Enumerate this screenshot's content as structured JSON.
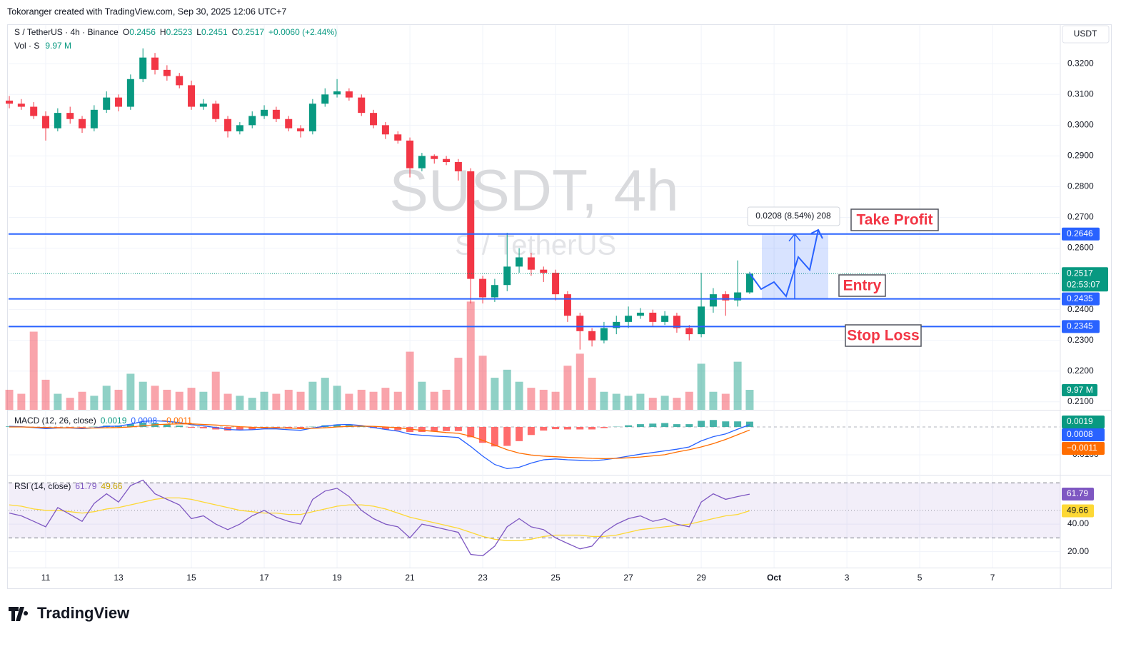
{
  "header": {
    "credit": "Tokoranger created with TradingView.com, Sep 30, 2025 12:06 UTC+7",
    "symbol": "S / TetherUS · 4h · Binance",
    "ohlc_letters": [
      "O",
      "H",
      "L",
      "C"
    ],
    "change": "+0.0060 (+2.44%)",
    "vol_label": "Vol · S",
    "vol_value": "9.97 M",
    "currency": "USDT",
    "countdown": "02:53:07",
    "logo": "TradingView"
  },
  "chart_data": {
    "type": "candlestick",
    "watermark": "SUSDT, 4h",
    "watermark_sub": "S / TetherUS",
    "up_color": "#089981",
    "down_color": "#f23645",
    "grid": true,
    "x": [
      10,
      10.33,
      10.67,
      11,
      11.33,
      11.67,
      12,
      12.33,
      12.67,
      13,
      13.33,
      13.67,
      14,
      14.33,
      14.67,
      15,
      15.33,
      15.67,
      16,
      16.33,
      16.67,
      17,
      17.33,
      17.67,
      18,
      18.33,
      18.67,
      19,
      19.33,
      19.67,
      20,
      20.33,
      20.67,
      21,
      21.33,
      21.67,
      22,
      22.33,
      22.67,
      23,
      23.33,
      23.67,
      24,
      24.33,
      24.67,
      25,
      25.33,
      25.67,
      26,
      26.33,
      26.67,
      27,
      27.33,
      27.67,
      28,
      28.33,
      28.67,
      29,
      29.33,
      29.67,
      30,
      30.33
    ],
    "open": [
      0.308,
      0.307,
      0.306,
      0.303,
      0.299,
      0.304,
      0.302,
      0.299,
      0.305,
      0.309,
      0.306,
      0.315,
      0.322,
      0.318,
      0.316,
      0.313,
      0.306,
      0.307,
      0.302,
      0.298,
      0.3,
      0.303,
      0.305,
      0.302,
      0.299,
      0.298,
      0.307,
      0.31,
      0.311,
      0.309,
      0.304,
      0.3,
      0.297,
      0.295,
      0.286,
      0.29,
      0.289,
      0.288,
      0.285,
      0.25,
      0.244,
      0.248,
      0.254,
      0.257,
      0.253,
      0.252,
      0.245,
      0.238,
      0.233,
      0.23,
      0.234,
      0.236,
      0.238,
      0.239,
      0.236,
      0.238,
      0.234,
      0.232,
      0.241,
      0.245,
      0.243,
      0.2456
    ],
    "high": [
      0.3095,
      0.3085,
      0.3075,
      0.3045,
      0.3055,
      0.306,
      0.303,
      0.3065,
      0.311,
      0.31,
      0.3165,
      0.325,
      0.3235,
      0.3195,
      0.317,
      0.3145,
      0.3085,
      0.308,
      0.303,
      0.301,
      0.3045,
      0.3065,
      0.306,
      0.303,
      0.3,
      0.3085,
      0.312,
      0.315,
      0.312,
      0.31,
      0.305,
      0.301,
      0.298,
      0.296,
      0.291,
      0.2905,
      0.29,
      0.289,
      0.286,
      0.251,
      0.25,
      0.265,
      0.26,
      0.2585,
      0.254,
      0.253,
      0.246,
      0.239,
      0.234,
      0.236,
      0.238,
      0.241,
      0.2405,
      0.24,
      0.2395,
      0.239,
      0.235,
      0.252,
      0.247,
      0.246,
      0.256,
      0.2523
    ],
    "low": [
      0.3055,
      0.305,
      0.302,
      0.295,
      0.298,
      0.3005,
      0.2975,
      0.298,
      0.304,
      0.3045,
      0.305,
      0.314,
      0.3165,
      0.3145,
      0.312,
      0.305,
      0.305,
      0.301,
      0.296,
      0.297,
      0.299,
      0.302,
      0.301,
      0.298,
      0.296,
      0.297,
      0.306,
      0.309,
      0.308,
      0.303,
      0.299,
      0.2955,
      0.294,
      0.283,
      0.285,
      0.2875,
      0.287,
      0.282,
      0.242,
      0.242,
      0.2425,
      0.246,
      0.252,
      0.251,
      0.249,
      0.243,
      0.236,
      0.227,
      0.228,
      0.229,
      0.232,
      0.234,
      0.237,
      0.2345,
      0.235,
      0.2325,
      0.23,
      0.231,
      0.239,
      0.238,
      0.241,
      0.2451
    ],
    "close": [
      0.307,
      0.306,
      0.303,
      0.299,
      0.304,
      0.302,
      0.299,
      0.305,
      0.309,
      0.306,
      0.315,
      0.322,
      0.318,
      0.316,
      0.313,
      0.306,
      0.307,
      0.302,
      0.298,
      0.3,
      0.303,
      0.305,
      0.302,
      0.299,
      0.298,
      0.307,
      0.31,
      0.311,
      0.309,
      0.304,
      0.3,
      0.297,
      0.295,
      0.286,
      0.29,
      0.289,
      0.288,
      0.285,
      0.25,
      0.244,
      0.248,
      0.254,
      0.257,
      0.253,
      0.252,
      0.245,
      0.238,
      0.233,
      0.23,
      0.234,
      0.236,
      0.238,
      0.239,
      0.236,
      0.238,
      0.234,
      0.232,
      0.241,
      0.245,
      0.243,
      0.2456,
      0.2517
    ],
    "volume": [
      10,
      8,
      39,
      15,
      8,
      6,
      9,
      7,
      12,
      10,
      18,
      14,
      12,
      10,
      9,
      11,
      9,
      19,
      8,
      7,
      6,
      9,
      8,
      10,
      9,
      14,
      16,
      12,
      8,
      10,
      9,
      11,
      9,
      29,
      14,
      9,
      10,
      26,
      54,
      27,
      16,
      20,
      14,
      11,
      10,
      9,
      22,
      28,
      16,
      9,
      8,
      7,
      8,
      6,
      7,
      6,
      9,
      23,
      9,
      8,
      24,
      9.97
    ],
    "volume_ylim": [
      0,
      192
    ],
    "xlim": [
      9.98,
      38.86
    ],
    "xticks": [
      11,
      13,
      15,
      17,
      19,
      21,
      23,
      25,
      27,
      29,
      {
        "value": 31,
        "label": "Oct"
      },
      {
        "value": 33,
        "label": "3"
      },
      {
        "value": 35,
        "label": "5"
      },
      {
        "value": 37,
        "label": "7"
      }
    ],
    "ylim": [
      0.2074,
      0.3326
    ],
    "yticks": [
      {
        "value": 0.32,
        "label": "0.3200"
      },
      {
        "value": 0.31,
        "label": "0.3100"
      },
      {
        "value": 0.3,
        "label": "0.3000"
      },
      {
        "value": 0.29,
        "label": "0.2900"
      },
      {
        "value": 0.28,
        "label": "0.2800"
      },
      {
        "value": 0.27,
        "label": "0.2700"
      },
      {
        "value": 0.26,
        "label": "0.2600"
      },
      {
        "value": 0.24,
        "label": "0.2400"
      },
      {
        "value": 0.23,
        "label": "0.2300"
      },
      {
        "value": 0.22,
        "label": "0.2200"
      },
      {
        "value": 0.21,
        "label": "0.2100"
      }
    ],
    "levels": [
      {
        "name": "Take Profit",
        "value": 0.2646
      },
      {
        "name": "Entry",
        "value": 0.2435
      },
      {
        "name": "Stop Loss",
        "value": 0.2345
      }
    ],
    "level_color": "#2962ff",
    "measure": "0.0208 (8.54%) 208",
    "macd": {
      "title": "MACD (12, 26, close)",
      "line_color": "#2962ff",
      "signal_color": "#ff6d00",
      "signal_last_label": "−0.0011",
      "line": [
        0.0002,
        0.0001,
        -0.0002,
        -0.0006,
        -0.0004,
        -0.0004,
        -0.0006,
        -0.0003,
        0.0002,
        0.0003,
        0.001,
        0.002,
        0.0022,
        0.002,
        0.0016,
        0.0008,
        0.0004,
        -0.0002,
        -0.0009,
        -0.0011,
        -0.001,
        -0.0007,
        -0.0007,
        -0.001,
        -0.0012,
        -0.0004,
        0.0003,
        0.0008,
        0.0009,
        0.0005,
        -0.0002,
        -0.0009,
        -0.0015,
        -0.0026,
        -0.003,
        -0.0033,
        -0.0035,
        -0.0038,
        -0.007,
        -0.0105,
        -0.0135,
        -0.015,
        -0.0145,
        -0.013,
        -0.0118,
        -0.0115,
        -0.0118,
        -0.012,
        -0.0122,
        -0.0118,
        -0.0112,
        -0.0105,
        -0.0098,
        -0.0092,
        -0.0086,
        -0.008,
        -0.0072,
        -0.005,
        -0.0035,
        -0.0025,
        -0.0008,
        0.0008
      ],
      "signal": [
        0.0,
        0.0,
        -0.0001,
        -0.0002,
        -0.0003,
        -0.0003,
        -0.0004,
        -0.0004,
        -0.0003,
        -0.0002,
        0.0,
        0.0004,
        0.0008,
        0.001,
        0.0011,
        0.0011,
        0.0009,
        0.0007,
        0.0004,
        0.0001,
        -0.0001,
        -0.0002,
        -0.0003,
        -0.0004,
        -0.0006,
        -0.0005,
        -0.0003,
        0.0,
        0.0002,
        0.0003,
        0.0002,
        0.0,
        -0.0003,
        -0.0008,
        -0.0012,
        -0.0016,
        -0.002,
        -0.0023,
        -0.0033,
        -0.0048,
        -0.0065,
        -0.0082,
        -0.0094,
        -0.0101,
        -0.0105,
        -0.0107,
        -0.0109,
        -0.0111,
        -0.0113,
        -0.0114,
        -0.0113,
        -0.0111,
        -0.0108,
        -0.0104,
        -0.01,
        -0.009,
        -0.0082,
        -0.0072,
        -0.006,
        -0.0045,
        -0.0028,
        -0.0011
      ],
      "histogram": [
        0.0002,
        0.0001,
        -0.0001,
        -0.0004,
        -0.0001,
        -0.0001,
        -0.0002,
        0.0001,
        0.0005,
        0.0005,
        0.001,
        0.0016,
        0.0014,
        0.001,
        0.0005,
        -0.0003,
        -0.0005,
        -0.0009,
        -0.0013,
        -0.0012,
        -0.0009,
        -0.0005,
        -0.0004,
        -0.0006,
        -0.0006,
        0.0001,
        0.0006,
        0.0008,
        0.0007,
        0.0002,
        -0.0004,
        -0.0009,
        -0.0012,
        -0.0018,
        -0.0018,
        -0.0017,
        -0.0015,
        -0.0015,
        -0.0037,
        -0.0057,
        -0.007,
        -0.0068,
        -0.0051,
        -0.0029,
        -0.0013,
        -0.0008,
        -0.0009,
        -0.0009,
        -0.0009,
        -0.0004,
        0.0001,
        0.0006,
        0.001,
        0.0012,
        0.0014,
        0.001,
        0.001,
        0.0022,
        0.0025,
        0.002,
        0.002,
        0.0019
      ],
      "ylim": [
        -0.0172,
        0.0059
      ],
      "yticks": [
        {
          "value": -0.01,
          "label": "−0.0100"
        }
      ]
    },
    "rsi": {
      "title": "RSI (14, close)",
      "color": "#7e57c2",
      "ma_color": "#fdd835",
      "values": [
        48,
        46,
        42,
        38,
        52,
        47,
        42,
        55,
        62,
        56,
        68,
        72,
        62,
        58,
        54,
        44,
        46,
        40,
        36,
        40,
        46,
        50,
        45,
        42,
        40,
        58,
        64,
        66,
        60,
        50,
        44,
        40,
        38,
        30,
        40,
        38,
        36,
        34,
        18,
        17,
        24,
        38,
        44,
        38,
        36,
        30,
        26,
        22,
        24,
        34,
        40,
        44,
        46,
        42,
        44,
        40,
        38,
        56,
        62,
        58,
        60,
        61.79
      ],
      "ma": [
        54,
        53,
        51,
        50,
        50,
        49,
        48,
        49,
        51,
        52,
        54,
        56,
        58,
        59,
        59,
        58,
        56,
        54,
        52,
        50,
        49,
        48,
        48,
        47,
        47,
        49,
        51,
        53,
        54,
        54,
        53,
        51,
        48,
        45,
        43,
        41,
        39,
        37,
        34,
        31,
        29,
        28,
        28,
        29,
        31,
        32,
        32,
        32,
        31,
        31,
        32,
        34,
        36,
        37,
        38,
        39,
        40,
        42,
        44,
        46,
        47,
        49.66
      ],
      "bands": [
        70,
        30
      ],
      "midline": 50,
      "ylim": [
        8.4,
        75.3
      ],
      "yticks": [
        {
          "value": 40,
          "label": "40.00"
        },
        {
          "value": 20,
          "label": "20.00"
        }
      ]
    }
  }
}
